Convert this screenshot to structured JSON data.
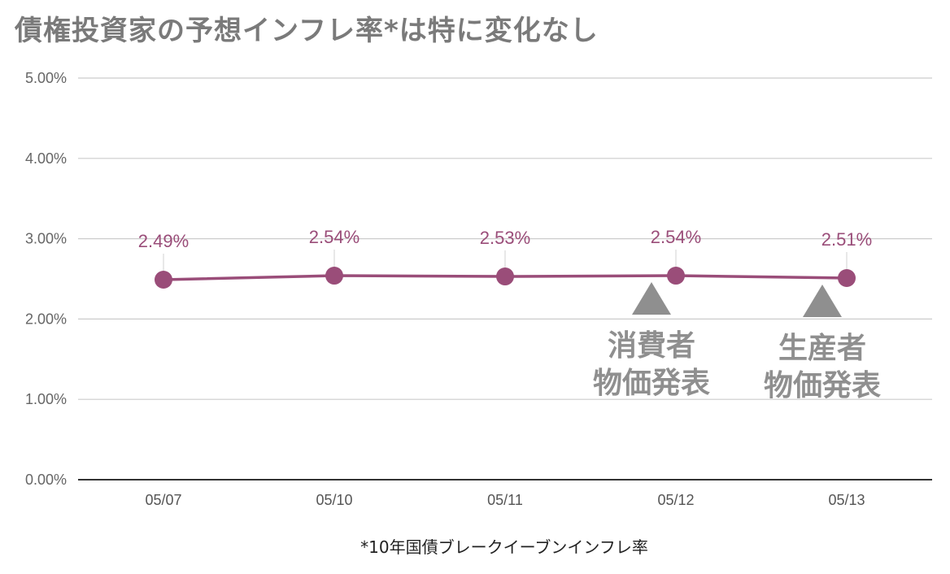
{
  "title": "債権投資家の予想インフレ率*は特に変化なし",
  "chart_data": {
    "type": "line",
    "title": "債権投資家の予想インフレ率*は特に変化なし",
    "categories": [
      "05/07",
      "05/10",
      "05/11",
      "05/12",
      "05/13"
    ],
    "values": [
      2.49,
      2.54,
      2.53,
      2.54,
      2.51
    ],
    "data_labels": [
      "2.49%",
      "2.54%",
      "2.53%",
      "2.54%",
      "2.51%"
    ],
    "ylim": [
      0,
      5
    ],
    "yticks": [
      0,
      1,
      2,
      3,
      4,
      5
    ],
    "ytick_labels": [
      "0.00%",
      "1.00%",
      "2.00%",
      "3.00%",
      "4.00%",
      "5.00%"
    ],
    "xlabel": "*10年国債ブレークイーブンインフレ率",
    "ylabel": "",
    "grid": true,
    "legend": "none",
    "series_color": "#9a4d79",
    "annotations": [
      {
        "category": "05/12",
        "lines": [
          "消費者",
          "物価発表"
        ],
        "marker": "up-triangle"
      },
      {
        "category": "05/13",
        "lines": [
          "生産者",
          "物価発表"
        ],
        "marker": "up-triangle"
      }
    ],
    "annotation_color": "#8f8f8f"
  }
}
